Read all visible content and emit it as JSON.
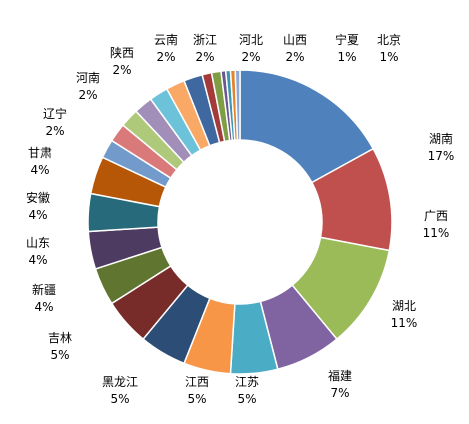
{
  "chart_data": {
    "type": "pie",
    "donut": true,
    "title": "",
    "legend": "none",
    "slices": [
      {
        "label": "湖南",
        "value": 17,
        "pct_label": "17%",
        "color": "#4F81BD"
      },
      {
        "label": "广西",
        "value": 11,
        "pct_label": "11%",
        "color": "#C0504D"
      },
      {
        "label": "湖北",
        "value": 11,
        "pct_label": "11%",
        "color": "#9BBB59"
      },
      {
        "label": "福建",
        "value": 7,
        "pct_label": "7%",
        "color": "#8064A2"
      },
      {
        "label": "江苏",
        "value": 5,
        "pct_label": "5%",
        "color": "#4BACC6"
      },
      {
        "label": "江西",
        "value": 5,
        "pct_label": "5%",
        "color": "#F79646"
      },
      {
        "label": "黑龙江",
        "value": 5,
        "pct_label": "5%",
        "color": "#2C4D75"
      },
      {
        "label": "吉林",
        "value": 5,
        "pct_label": "5%",
        "color": "#772C2A"
      },
      {
        "label": "新疆",
        "value": 4,
        "pct_label": "4%",
        "color": "#5F7530"
      },
      {
        "label": "山东",
        "value": 4,
        "pct_label": "4%",
        "color": "#4D3B62"
      },
      {
        "label": "安徽",
        "value": 4,
        "pct_label": "4%",
        "color": "#276A7C"
      },
      {
        "label": "甘肃",
        "value": 4,
        "pct_label": "4%",
        "color": "#B65708"
      },
      {
        "label": "辽宁",
        "value": 2,
        "pct_label": "2%",
        "color": "#729ACA"
      },
      {
        "label": "河南",
        "value": 2,
        "pct_label": "2%",
        "color": "#D9797A"
      },
      {
        "label": "陕西",
        "value": 2,
        "pct_label": "2%",
        "color": "#AFC97A"
      },
      {
        "label": "云南",
        "value": 2,
        "pct_label": "2%",
        "color": "#A18FBA"
      },
      {
        "label": "浙江",
        "value": 2,
        "pct_label": "2%",
        "color": "#6CC3D9"
      },
      {
        "label": "河北",
        "value": 2,
        "pct_label": "2%",
        "color": "#F9A866"
      },
      {
        "label": "山西",
        "value": 2,
        "pct_label": "2%",
        "color": "#3F68A0"
      },
      {
        "label": "宁夏",
        "value": 1,
        "pct_label": "1%",
        "color": "#A23B39"
      },
      {
        "label": "北京",
        "value": 1,
        "pct_label": "1%",
        "color": "#7F9D43"
      }
    ],
    "trailing_slivers": [
      "#6B5690",
      "#3B97AF",
      "#E0842E",
      "#8EA9D6"
    ]
  }
}
